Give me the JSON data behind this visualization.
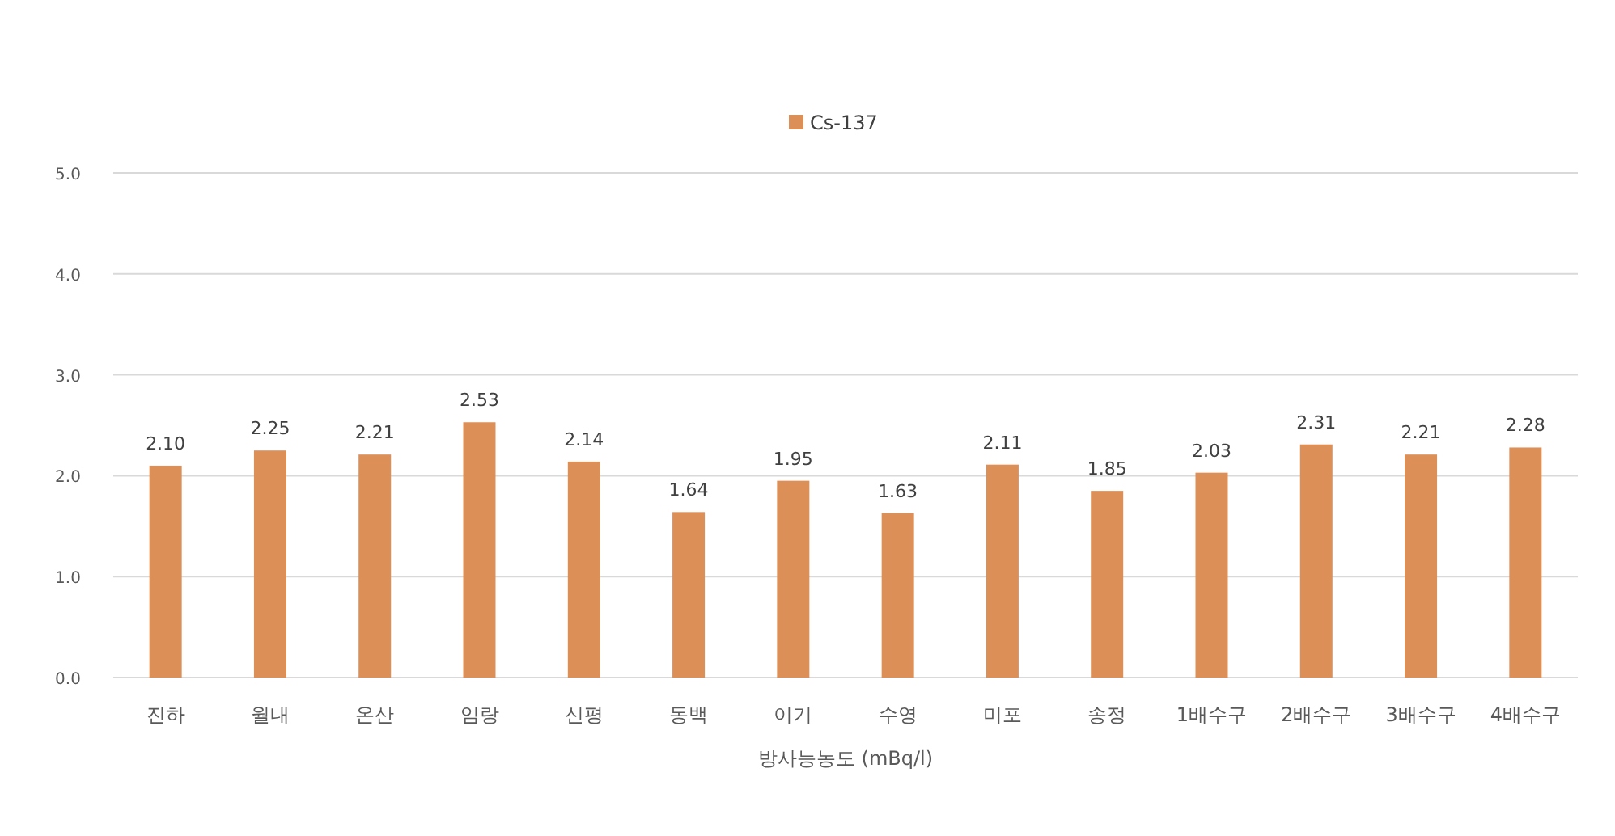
{
  "chart_data": {
    "type": "bar",
    "xlabel": "방사능농도 (mBq/l)",
    "categories": [
      "진하",
      "월내",
      "온산",
      "임랑",
      "신평",
      "동백",
      "이기",
      "수영",
      "미포",
      "송정",
      "1배수구",
      "2배수구",
      "3배수구",
      "4배수구"
    ],
    "series": [
      {
        "name": "Cs-137",
        "color": "#dd8f58",
        "values": [
          2.1,
          2.25,
          2.21,
          2.53,
          2.14,
          1.64,
          1.95,
          1.63,
          2.11,
          1.85,
          2.03,
          2.31,
          2.21,
          2.28
        ],
        "value_labels": [
          "2.10",
          "2.25",
          "2.21",
          "2.53",
          "2.14",
          "1.64",
          "1.95",
          "1.63",
          "2.11",
          "1.85",
          "2.03",
          "2.31",
          "2.21",
          "2.28"
        ]
      }
    ],
    "ylim": [
      0,
      5
    ],
    "yticks": [
      {
        "value": 0,
        "label": "0.0"
      },
      {
        "value": 1,
        "label": "1.0"
      },
      {
        "value": 2,
        "label": "2.0"
      },
      {
        "value": 3,
        "label": "3.0"
      },
      {
        "value": 4,
        "label": "4.0"
      },
      {
        "value": 5,
        "label": "5.0"
      }
    ],
    "grid": "y",
    "legend": "top"
  }
}
